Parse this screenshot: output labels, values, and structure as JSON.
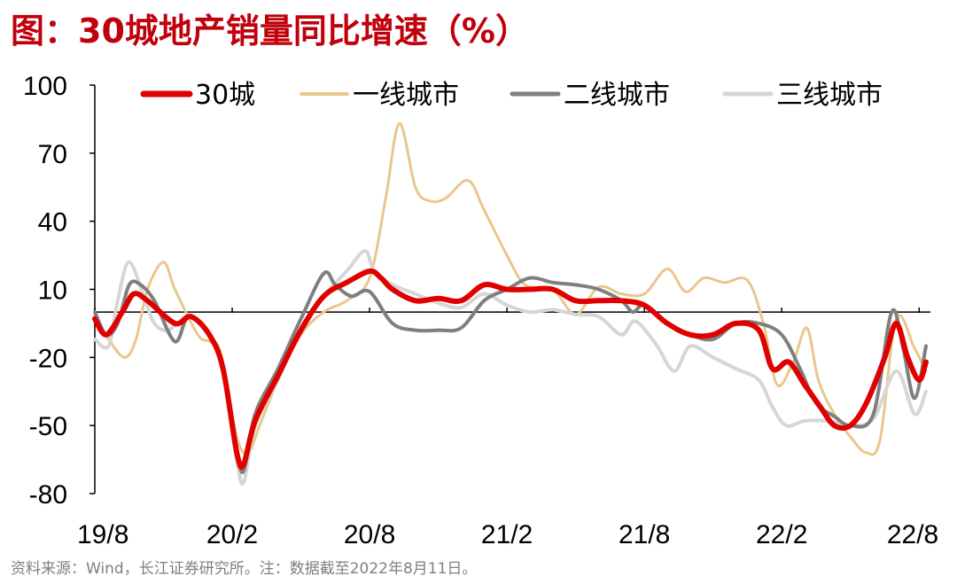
{
  "title": "图：30城地产销量同比增速（%）",
  "source": "资料来源：Wind，长江证券研究所。注：数据截至2022年8月11日。",
  "chart_data": {
    "type": "line",
    "title": "图：30城地产销量同比增速（%）",
    "ylim": [
      -80,
      100
    ],
    "yticks": [
      100,
      70,
      40,
      10,
      -20,
      -50,
      -80
    ],
    "xlim": [
      0,
      36.3
    ],
    "xticks": [
      {
        "label": "19/8",
        "x": 0
      },
      {
        "label": "20/2",
        "x": 6
      },
      {
        "label": "20/8",
        "x": 12
      },
      {
        "label": "21/2",
        "x": 18
      },
      {
        "label": "21/8",
        "x": 24
      },
      {
        "label": "22/2",
        "x": 30
      },
      {
        "label": "22/8",
        "x": 36
      }
    ],
    "legend_position": "top",
    "series": [
      {
        "name": "一线城市",
        "color": "#e9c78c",
        "width": 3,
        "points": [
          [
            0,
            -2
          ],
          [
            0.6,
            -12
          ],
          [
            1.3,
            -20
          ],
          [
            1.8,
            -12
          ],
          [
            2.3,
            10
          ],
          [
            3,
            22
          ],
          [
            3.5,
            10
          ],
          [
            4.5,
            -10
          ],
          [
            5,
            -13
          ],
          [
            5.5,
            -18
          ],
          [
            6.2,
            -55
          ],
          [
            6.7,
            -62
          ],
          [
            7.2,
            -50
          ],
          [
            8,
            -30
          ],
          [
            9,
            -10
          ],
          [
            10,
            0
          ],
          [
            11,
            5
          ],
          [
            12,
            15
          ],
          [
            12.7,
            50
          ],
          [
            13.3,
            83
          ],
          [
            14.0,
            55
          ],
          [
            14.6,
            49
          ],
          [
            15.3,
            50
          ],
          [
            16.3,
            58
          ],
          [
            17.0,
            45
          ],
          [
            18.0,
            25
          ],
          [
            18.8,
            12
          ],
          [
            20,
            10
          ],
          [
            21,
            -1
          ],
          [
            22,
            11
          ],
          [
            23,
            8
          ],
          [
            24,
            8
          ],
          [
            25,
            19
          ],
          [
            25.8,
            9
          ],
          [
            26.6,
            15
          ],
          [
            27.5,
            13
          ],
          [
            28.5,
            14
          ],
          [
            29.2,
            -5
          ],
          [
            29.8,
            -32
          ],
          [
            30.5,
            -22
          ],
          [
            31.1,
            -7
          ],
          [
            31.6,
            -30
          ],
          [
            32.3,
            -45
          ],
          [
            33,
            -55
          ],
          [
            33.7,
            -62
          ],
          [
            34.3,
            -56
          ],
          [
            35.0,
            -3
          ],
          [
            35.8,
            -16
          ],
          [
            36.3,
            -26
          ]
        ]
      },
      {
        "name": "三线城市",
        "color": "#d6d6d6",
        "width": 4,
        "points": [
          [
            0,
            -12
          ],
          [
            0.6,
            -15
          ],
          [
            1.0,
            5
          ],
          [
            1.5,
            22
          ],
          [
            2.2,
            5
          ],
          [
            2.6,
            -5
          ],
          [
            3.2,
            -8
          ],
          [
            4.1,
            -2
          ],
          [
            5.0,
            -10
          ],
          [
            5.6,
            -25
          ],
          [
            6.2,
            -65
          ],
          [
            6.5,
            -75
          ],
          [
            7.0,
            -50
          ],
          [
            8,
            -30
          ],
          [
            9,
            -7
          ],
          [
            10,
            7
          ],
          [
            11,
            18
          ],
          [
            11.8,
            27
          ],
          [
            12.2,
            18
          ],
          [
            13.0,
            12
          ],
          [
            14.0,
            8
          ],
          [
            15.0,
            4
          ],
          [
            16.0,
            2
          ],
          [
            17.0,
            8
          ],
          [
            18.0,
            3
          ],
          [
            19.0,
            0
          ],
          [
            20.0,
            1
          ],
          [
            21.0,
            -1
          ],
          [
            22.0,
            -2
          ],
          [
            23.0,
            -10
          ],
          [
            23.6,
            -4
          ],
          [
            24.5,
            -14
          ],
          [
            25.3,
            -26
          ],
          [
            26.0,
            -15
          ],
          [
            27.0,
            -20
          ],
          [
            28.0,
            -25
          ],
          [
            29.0,
            -30
          ],
          [
            29.6,
            -42
          ],
          [
            30.2,
            -50
          ],
          [
            31,
            -48
          ],
          [
            32,
            -48
          ],
          [
            33,
            -50
          ],
          [
            34,
            -47
          ],
          [
            35.0,
            -26
          ],
          [
            35.8,
            -45
          ],
          [
            36.3,
            -35
          ]
        ]
      },
      {
        "name": "二线城市",
        "color": "#7f7f7f",
        "width": 4,
        "points": [
          [
            0,
            0
          ],
          [
            0.5,
            -10
          ],
          [
            1.0,
            -5
          ],
          [
            1.5,
            12
          ],
          [
            2.0,
            12
          ],
          [
            2.6,
            5
          ],
          [
            3.5,
            -13
          ],
          [
            4.1,
            -2
          ],
          [
            5.0,
            -10
          ],
          [
            5.6,
            -25
          ],
          [
            6.2,
            -60
          ],
          [
            6.5,
            -70
          ],
          [
            7.0,
            -45
          ],
          [
            8,
            -25
          ],
          [
            9,
            -3
          ],
          [
            10,
            17
          ],
          [
            10.5,
            12
          ],
          [
            11.2,
            7
          ],
          [
            12,
            9
          ],
          [
            13,
            -5
          ],
          [
            14,
            -8
          ],
          [
            15,
            -8
          ],
          [
            16,
            -7
          ],
          [
            17,
            5
          ],
          [
            18,
            10
          ],
          [
            19,
            15
          ],
          [
            20,
            13
          ],
          [
            21,
            12
          ],
          [
            22,
            10
          ],
          [
            23,
            5
          ],
          [
            23.5,
            0
          ],
          [
            24,
            3
          ],
          [
            25,
            -5
          ],
          [
            26,
            -10
          ],
          [
            27,
            -12
          ],
          [
            28,
            -5
          ],
          [
            29,
            -5
          ],
          [
            30,
            -10
          ],
          [
            30.8,
            -25
          ],
          [
            31.5,
            -40
          ],
          [
            32.3,
            -46
          ],
          [
            33.0,
            -50
          ],
          [
            34.0,
            -45
          ],
          [
            34.8,
            0
          ],
          [
            35.3,
            -16
          ],
          [
            35.8,
            -38
          ],
          [
            36.3,
            -15
          ]
        ]
      },
      {
        "name": "30城",
        "color": "#e00000",
        "width": 6,
        "points": [
          [
            0,
            -3
          ],
          [
            0.5,
            -10
          ],
          [
            1.2,
            0
          ],
          [
            1.7,
            8
          ],
          [
            2.3,
            5
          ],
          [
            3.5,
            -5
          ],
          [
            4.2,
            -2
          ],
          [
            5.0,
            -10
          ],
          [
            5.6,
            -25
          ],
          [
            6.2,
            -62
          ],
          [
            6.5,
            -67
          ],
          [
            7.0,
            -48
          ],
          [
            8,
            -28
          ],
          [
            9,
            -8
          ],
          [
            10,
            7
          ],
          [
            11,
            13
          ],
          [
            12,
            18
          ],
          [
            12.5,
            15
          ],
          [
            13,
            10
          ],
          [
            14,
            5
          ],
          [
            15,
            6
          ],
          [
            16,
            5
          ],
          [
            17,
            12
          ],
          [
            18,
            10
          ],
          [
            19,
            10
          ],
          [
            20,
            10
          ],
          [
            21,
            5
          ],
          [
            22,
            5
          ],
          [
            23,
            5
          ],
          [
            24,
            3
          ],
          [
            25,
            -5
          ],
          [
            26,
            -10
          ],
          [
            27,
            -10
          ],
          [
            28,
            -5
          ],
          [
            29,
            -8
          ],
          [
            29.6,
            -25
          ],
          [
            30.3,
            -22
          ],
          [
            31,
            -32
          ],
          [
            31.7,
            -42
          ],
          [
            32.3,
            -50
          ],
          [
            33,
            -50
          ],
          [
            33.7,
            -40
          ],
          [
            34.5,
            -20
          ],
          [
            35.0,
            -5
          ],
          [
            35.5,
            -20
          ],
          [
            36.0,
            -30
          ],
          [
            36.3,
            -22
          ]
        ]
      }
    ],
    "legend": [
      {
        "name": "30城",
        "color": "#e00000",
        "width": 6
      },
      {
        "name": "一线城市",
        "color": "#e9c78c",
        "width": 3
      },
      {
        "name": "二线城市",
        "color": "#7f7f7f",
        "width": 4
      },
      {
        "name": "三线城市",
        "color": "#d6d6d6",
        "width": 4
      }
    ]
  }
}
